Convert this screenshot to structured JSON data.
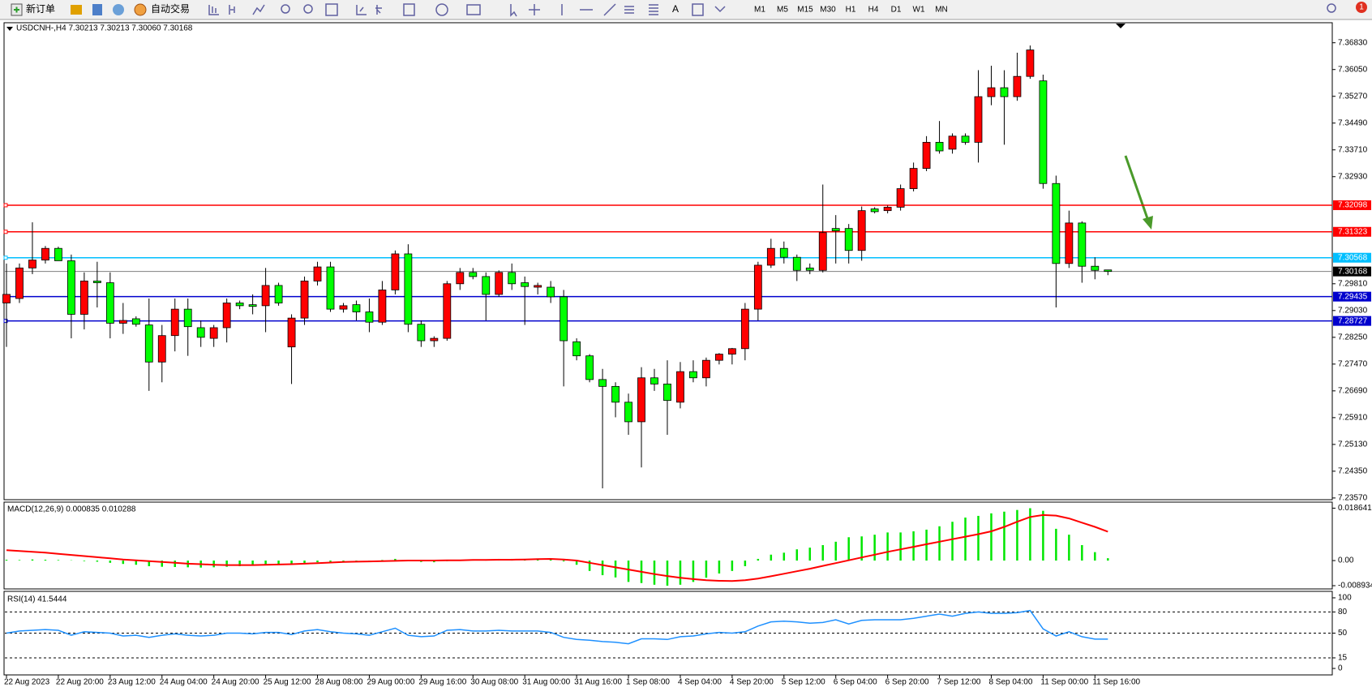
{
  "toolbar": {
    "new_order": "新订单",
    "auto_trading": "自动交易",
    "text_tool": "A",
    "timeframes": [
      "M1",
      "M5",
      "M15",
      "M30",
      "H1",
      "H4",
      "D1",
      "W1",
      "MN"
    ],
    "notification": "1"
  },
  "chart_data": [
    {
      "type": "candlestick",
      "title": "USDCNH-,H4  7.30213 7.30213 7.30060 7.30168",
      "up_color": "#ff0000",
      "down_color": "#00ff00",
      "categories": [
        "22 Aug 2023",
        null,
        null,
        null,
        "22 Aug 20:00",
        null,
        null,
        null,
        "23 Aug 12:00",
        null,
        null,
        null,
        "24 Aug 04:00",
        null,
        null,
        null,
        "24 Aug 20:00",
        null,
        null,
        null,
        "25 Aug 12:00",
        null,
        null,
        null,
        "28 Aug 08:00",
        null,
        null,
        null,
        "29 Aug 00:00",
        null,
        null,
        null,
        "29 Aug 16:00",
        null,
        null,
        null,
        "30 Aug 08:00",
        null,
        null,
        null,
        "31 Aug 00:00",
        null,
        null,
        null,
        "31 Aug 16:00",
        null,
        null,
        null,
        "1 Sep 08:00",
        null,
        null,
        null,
        "4 Sep 04:00",
        null,
        null,
        null,
        "4 Sep 20:00",
        null,
        null,
        null,
        "5 Sep 12:00",
        null,
        null,
        null,
        "6 Sep 04:00",
        null,
        null,
        null,
        "6 Sep 20:00",
        null,
        null,
        null,
        "7 Sep 12:00",
        null,
        null,
        null,
        "8 Sep 04:00",
        null,
        null,
        null,
        "11 Sep 00:00",
        null,
        null,
        null,
        "11 Sep 16:00",
        null
      ],
      "open": [
        7.2925,
        7.2938,
        7.3027,
        7.305,
        7.3084,
        7.3048,
        7.2892,
        7.2989,
        7.2984,
        7.2866,
        7.2879,
        7.2861,
        7.2753,
        7.283,
        7.2907,
        7.2853,
        7.2822,
        7.2853,
        7.2925,
        7.292,
        7.2917,
        7.2976,
        7.2797,
        7.2881,
        7.2989,
        7.303,
        7.2907,
        7.292,
        7.2899,
        7.2869,
        7.2963,
        7.3068,
        7.2863,
        7.2815,
        7.2822,
        7.2981,
        7.3014,
        7.3002,
        7.295,
        7.3014,
        7.2984,
        7.2971,
        7.2971,
        7.2943,
        7.2812,
        7.2771,
        7.2702,
        7.2682,
        7.2636,
        7.2579,
        7.2707,
        7.2689,
        7.2636,
        7.2725,
        7.2707,
        7.2758,
        7.2776,
        7.2792,
        7.2907,
        7.3035,
        7.3084,
        7.3058,
        7.3027,
        7.302,
        7.3142,
        7.3142,
        7.3078,
        7.3199,
        7.3194,
        7.3204,
        7.3258,
        7.3317,
        7.3393,
        7.3373,
        7.3411,
        7.3393,
        7.3526,
        7.3552,
        7.3526,
        7.3585,
        7.3572,
        7.3273,
        7.304,
        7.3158,
        7.3032,
        7.30213
      ],
      "high": [
        7.304,
        7.304,
        7.316,
        7.3091,
        7.3089,
        7.3066,
        7.3014,
        7.3045,
        7.3014,
        7.2925,
        7.2886,
        7.2938,
        7.2861,
        7.2938,
        7.2938,
        7.2874,
        7.2861,
        7.2938,
        7.2932,
        7.295,
        7.3027,
        7.2984,
        7.2892,
        7.3002,
        7.3045,
        7.3045,
        7.2925,
        7.2932,
        7.2938,
        7.2989,
        7.3078,
        7.3096,
        7.2874,
        7.2828,
        7.2989,
        7.3027,
        7.3027,
        7.3014,
        7.302,
        7.304,
        7.3002,
        7.2984,
        7.2989,
        7.2963,
        7.2822,
        7.2776,
        7.2733,
        7.2694,
        7.2661,
        7.2738,
        7.2733,
        7.2758,
        7.2753,
        7.2758,
        7.2766,
        7.2779,
        7.2794,
        7.2925,
        7.3045,
        7.3112,
        7.3104,
        7.3066,
        7.304,
        7.327,
        7.3181,
        7.3155,
        7.3206,
        7.3204,
        7.3209,
        7.327,
        7.3334,
        7.3411,
        7.3455,
        7.3419,
        7.3419,
        7.3603,
        7.3616,
        7.3603,
        7.3654,
        7.3675,
        7.359,
        7.3296,
        7.3194,
        7.3163,
        7.3058,
        7.30213
      ],
      "low": [
        7.2797,
        7.2925,
        7.3009,
        7.304,
        7.3048,
        7.2822,
        7.2848,
        7.2912,
        7.2822,
        7.2835,
        7.2856,
        7.2669,
        7.2694,
        7.2784,
        7.2771,
        7.2797,
        7.2797,
        7.281,
        7.2907,
        7.2892,
        7.284,
        7.2917,
        7.2689,
        7.2861,
        7.2976,
        7.2899,
        7.2897,
        7.2874,
        7.284,
        7.2861,
        7.295,
        7.284,
        7.2797,
        7.2797,
        7.2815,
        7.2963,
        7.2994,
        7.2874,
        7.2943,
        7.2963,
        7.2861,
        7.295,
        7.2925,
        7.2682,
        7.2758,
        7.2694,
        7.2385,
        7.2592,
        7.2541,
        7.2446,
        7.2669,
        7.2541,
        7.2618,
        7.2694,
        7.2682,
        7.2746,
        7.2746,
        7.2758,
        7.2874,
        7.3027,
        7.304,
        7.2989,
        7.3009,
        7.3014,
        7.304,
        7.304,
        7.3048,
        7.3186,
        7.3186,
        7.3194,
        7.325,
        7.3309,
        7.336,
        7.336,
        7.3386,
        7.3334,
        7.3501,
        7.3386,
        7.3514,
        7.3578,
        7.3258,
        7.2912,
        7.3027,
        7.2984,
        7.2994,
        7.3006
      ],
      "close": [
        7.295,
        7.3027,
        7.305,
        7.3084,
        7.3048,
        7.2892,
        7.2989,
        7.2984,
        7.2866,
        7.2874,
        7.2863,
        7.2753,
        7.283,
        7.2907,
        7.2856,
        7.2825,
        7.2853,
        7.2925,
        7.2917,
        7.2915,
        7.2976,
        7.2925,
        7.2881,
        7.2989,
        7.303,
        7.2907,
        7.2917,
        7.2899,
        7.2869,
        7.2963,
        7.3068,
        7.2863,
        7.2815,
        7.2822,
        7.2981,
        7.3014,
        7.3002,
        7.295,
        7.3014,
        7.2981,
        7.2973,
        7.2976,
        7.2943,
        7.2815,
        7.2771,
        7.2702,
        7.2682,
        7.2636,
        7.2579,
        7.2707,
        7.2689,
        7.2641,
        7.2725,
        7.2707,
        7.2758,
        7.2776,
        7.2792,
        7.2907,
        7.3035,
        7.3084,
        7.3058,
        7.302,
        7.302,
        7.313,
        7.3135,
        7.3078,
        7.3194,
        7.3191,
        7.3204,
        7.3258,
        7.3317,
        7.3393,
        7.3368,
        7.3411,
        7.3393,
        7.3526,
        7.3552,
        7.3526,
        7.3585,
        7.3662,
        7.3273,
        7.304,
        7.3158,
        7.3032,
        7.302,
        7.30168
      ],
      "ylim": [
        7.2352,
        7.3739
      ],
      "yticks": [
        {
          "value": 7.3683,
          "label": "7.36830"
        },
        {
          "value": 7.3605,
          "label": "7.36050"
        },
        {
          "value": 7.3527,
          "label": "7.35270"
        },
        {
          "value": 7.3449,
          "label": "7.34490"
        },
        {
          "value": 7.3371,
          "label": "7.33710"
        },
        {
          "value": 7.3293,
          "label": "7.32930"
        },
        {
          "value": 7.2981,
          "label": "7.29810"
        },
        {
          "value": 7.2903,
          "label": "7.29030"
        },
        {
          "value": 7.2825,
          "label": "7.28250"
        },
        {
          "value": 7.2747,
          "label": "7.27470"
        },
        {
          "value": 7.2669,
          "label": "7.26690"
        },
        {
          "value": 7.2591,
          "label": "7.25910"
        },
        {
          "value": 7.2513,
          "label": "7.25130"
        },
        {
          "value": 7.2435,
          "label": "7.24350"
        },
        {
          "value": 7.2357,
          "label": "7.23570"
        }
      ],
      "hlines": [
        {
          "value": 7.32098,
          "color": "#ff0000"
        },
        {
          "value": 7.31323,
          "color": "#ff0000"
        },
        {
          "value": 7.30568,
          "color": "#00bfff"
        },
        {
          "value": 7.29435,
          "color": "#0000cd"
        },
        {
          "value": 7.28727,
          "color": "#0000cd"
        }
      ],
      "last_price": {
        "value": 7.30168,
        "color": "#000000"
      }
    },
    {
      "type": "macd",
      "title": "MACD(12,26,9) 0.000835 0.010288",
      "histogram": {
        "color": "#00e600",
        "values": [
          0.0003,
          0.0002,
          0.0004,
          0.0003,
          0.0002,
          0.0001,
          -0.0002,
          -0.0004,
          -0.0008,
          -0.0012,
          -0.0015,
          -0.002,
          -0.0022,
          -0.0023,
          -0.0024,
          -0.0025,
          -0.0024,
          -0.0022,
          -0.002,
          -0.0018,
          -0.0014,
          -0.0012,
          -0.0014,
          -0.001,
          -0.0006,
          -0.0004,
          -0.0004,
          -0.0003,
          -0.0001,
          0.0002,
          0.0006,
          0.0002,
          -0.0005,
          -0.0006,
          -0.0002,
          0.0002,
          0.0004,
          0.0004,
          0.0006,
          0.0006,
          0.0005,
          0.0005,
          0.0004,
          -0.0003,
          -0.0015,
          -0.0037,
          -0.0052,
          -0.006,
          -0.0076,
          -0.008,
          -0.0086,
          -0.008934,
          -0.0086,
          -0.0076,
          -0.0061,
          -0.0046,
          -0.0037,
          -0.002,
          0.0006,
          0.0021,
          0.0028,
          0.004,
          0.0046,
          0.0055,
          0.0067,
          0.0083,
          0.0086,
          0.0092,
          0.01,
          0.01,
          0.0104,
          0.011,
          0.0122,
          0.0138,
          0.0153,
          0.0159,
          0.0168,
          0.0174,
          0.018,
          0.018641,
          0.0177,
          0.0113,
          0.0092,
          0.0055,
          0.003,
          0.000835
        ]
      },
      "signal": {
        "color": "#ff0000",
        "values": [
          0.0037,
          0.0034,
          0.0031,
          0.0028,
          0.0024,
          0.002,
          0.0016,
          0.0012,
          0.0008,
          0.0004,
          0.0001,
          -0.0002,
          -0.0005,
          -0.0008,
          -0.0011,
          -0.0013,
          -0.0015,
          -0.0016,
          -0.0016,
          -0.0016,
          -0.0015,
          -0.0014,
          -0.0013,
          -0.0011,
          -0.0009,
          -0.0007,
          -0.0005,
          -0.0004,
          -0.0003,
          -0.0002,
          -0.0001,
          0.0,
          0.0,
          0.0,
          0.0001,
          0.0001,
          0.0002,
          0.0002,
          0.0003,
          0.0003,
          0.0004,
          0.0005,
          0.0006,
          0.0004,
          0.0,
          -0.0008,
          -0.0016,
          -0.0024,
          -0.0032,
          -0.004,
          -0.0048,
          -0.0055,
          -0.0061,
          -0.0066,
          -0.007,
          -0.0072,
          -0.0073,
          -0.007,
          -0.0064,
          -0.0056,
          -0.0047,
          -0.0038,
          -0.0029,
          -0.0019,
          -0.0009,
          0.0001,
          0.0011,
          0.0021,
          0.0031,
          0.004,
          0.0049,
          0.0058,
          0.0067,
          0.0076,
          0.0085,
          0.0094,
          0.0104,
          0.012,
          0.0138,
          0.0155,
          0.0162,
          0.016,
          0.015,
          0.0135,
          0.012,
          0.010288
        ]
      },
      "ylim": [
        -0.0098,
        0.0205
      ],
      "yticks": [
        0.018641,
        {
          "value": 0,
          "label": "0.00"
        },
        -0.008934
      ]
    },
    {
      "type": "rsi",
      "title": "RSI(14) 41.5444",
      "color": "#1e90ff",
      "values": [
        50,
        53,
        54,
        55,
        54,
        47,
        52,
        51,
        50,
        46,
        47,
        44,
        47,
        49,
        47,
        46,
        47,
        50,
        50,
        49,
        51,
        51,
        48,
        53,
        55,
        52,
        50,
        49,
        47,
        52,
        57,
        47,
        45,
        46,
        54,
        55,
        53,
        53,
        54,
        53,
        53,
        53,
        51,
        44,
        41,
        40,
        38,
        37,
        35,
        42,
        42,
        41,
        45,
        46,
        49,
        51,
        50,
        52,
        60,
        66,
        67,
        66,
        64,
        65,
        69,
        63,
        68,
        69,
        69,
        69,
        71,
        74,
        77,
        74,
        78,
        80,
        78,
        78,
        79,
        82,
        56,
        46,
        52,
        45,
        41.5,
        41.5444
      ],
      "ylim": [
        -8,
        108
      ],
      "yticks": [
        100,
        80,
        50,
        15,
        0
      ],
      "levels": [
        80,
        50,
        15
      ]
    }
  ]
}
